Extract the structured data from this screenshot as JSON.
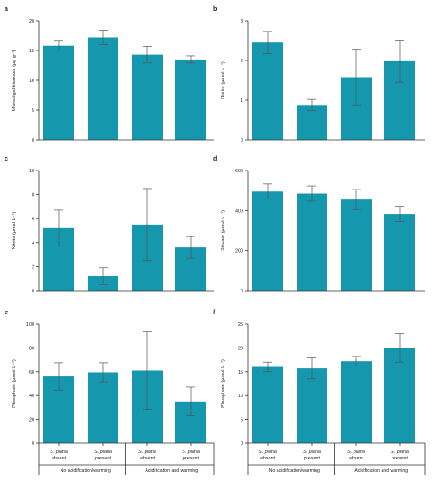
{
  "chart_data": [
    {
      "type": "bar",
      "panel": "a",
      "ylabel": "Microalgal biomass (µg g⁻¹)",
      "ylim": [
        0,
        20
      ],
      "yticks": [
        0,
        5,
        10,
        15,
        20
      ],
      "values": [
        15.8,
        17.2,
        14.3,
        13.5
      ],
      "errors": [
        0.9,
        1.2,
        1.4,
        0.6
      ]
    },
    {
      "type": "bar",
      "panel": "b",
      "ylabel": "Nitrite (µmol L⁻¹)",
      "ylim": [
        0,
        3
      ],
      "yticks": [
        0,
        1,
        2,
        3
      ],
      "values": [
        2.45,
        0.88,
        1.58,
        1.98
      ],
      "errors": [
        0.28,
        0.14,
        0.7,
        0.53
      ]
    },
    {
      "type": "bar",
      "panel": "c",
      "ylabel": "Nitrite (µmol L⁻¹)",
      "ylim": [
        0,
        10
      ],
      "yticks": [
        0,
        2,
        4,
        6,
        8,
        10
      ],
      "values": [
        5.2,
        1.2,
        5.5,
        3.6
      ],
      "errors": [
        1.5,
        0.7,
        3.0,
        0.9
      ]
    },
    {
      "type": "bar",
      "panel": "d",
      "ylabel": "Silicate (µmol L⁻¹)",
      "ylim": [
        0,
        600
      ],
      "yticks": [
        0,
        200,
        400,
        600
      ],
      "values": [
        495,
        485,
        455,
        383
      ],
      "errors": [
        38,
        38,
        50,
        38
      ]
    },
    {
      "type": "bar",
      "panel": "e",
      "ylabel": "Phosphate (µmol L⁻¹)",
      "ylim": [
        0,
        100
      ],
      "yticks": [
        0,
        20,
        40,
        60,
        80,
        100
      ],
      "values": [
        56,
        59.5,
        61,
        35
      ],
      "errors": [
        11.5,
        8,
        32.5,
        12
      ]
    },
    {
      "type": "bar",
      "panel": "f",
      "ylabel": "Phosphate (µmol L⁻¹)",
      "ylim": [
        0,
        25
      ],
      "yticks": [
        0,
        5,
        10,
        15,
        20,
        25
      ],
      "values": [
        16,
        15.7,
        17.2,
        20
      ],
      "errors": [
        1,
        2.2,
        1,
        3
      ]
    }
  ],
  "categories": [
    {
      "species": "S. plana",
      "state": "absent"
    },
    {
      "species": "S. plana",
      "state": "present"
    },
    {
      "species": "S. plana",
      "state": "absent"
    },
    {
      "species": "S. plana",
      "state": "present"
    }
  ],
  "groups": [
    "No acidification/warming",
    "Acidification and warming"
  ],
  "colors": {
    "bar": "#1597ae",
    "error": "#555555",
    "axis": "#333333"
  }
}
